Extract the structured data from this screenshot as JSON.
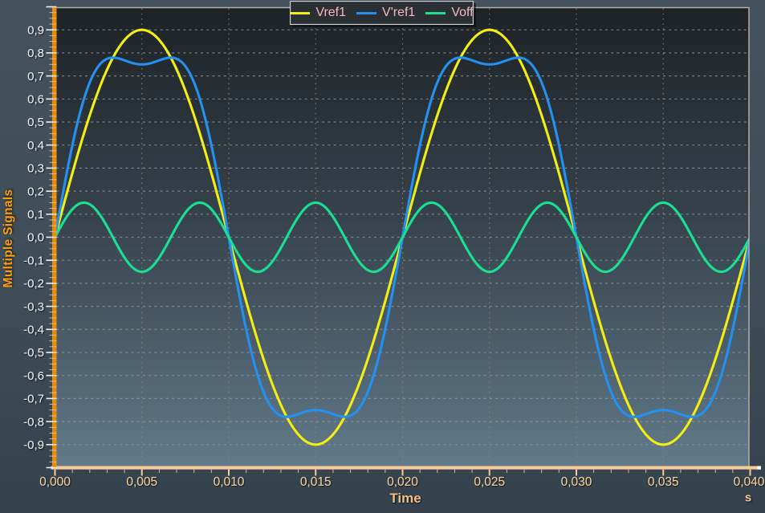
{
  "chart_data": {
    "type": "line",
    "ylabel": "Multiple Signals",
    "xlabel": "Time",
    "x_unit": "s",
    "xlim": [
      0,
      0.04
    ],
    "ylim": [
      -1.0,
      1.0
    ],
    "grid": {
      "horizontal": true,
      "vertical": true
    },
    "legend": {
      "position": "top-center",
      "entries": [
        "Vref1",
        "V'ref1",
        "Voff"
      ]
    },
    "x_ticks": [
      {
        "value": 0.0,
        "label": "0,000"
      },
      {
        "value": 0.005,
        "label": "0,005"
      },
      {
        "value": 0.01,
        "label": "0,010"
      },
      {
        "value": 0.015,
        "label": "0,015"
      },
      {
        "value": 0.02,
        "label": "0,020"
      },
      {
        "value": 0.025,
        "label": "0,025"
      },
      {
        "value": 0.03,
        "label": "0,030"
      },
      {
        "value": 0.035,
        "label": "0,035"
      },
      {
        "value": 0.04,
        "label": "0,040"
      }
    ],
    "y_ticks": [
      {
        "value": 0.9,
        "label": "0,9"
      },
      {
        "value": 0.8,
        "label": "0,8"
      },
      {
        "value": 0.7,
        "label": "0,7"
      },
      {
        "value": 0.6,
        "label": "0,6"
      },
      {
        "value": 0.5,
        "label": "0,5"
      },
      {
        "value": 0.4,
        "label": "0,4"
      },
      {
        "value": 0.3,
        "label": "0,3"
      },
      {
        "value": 0.2,
        "label": "0,2"
      },
      {
        "value": 0.1,
        "label": "0,1"
      },
      {
        "value": 0.0,
        "label": "0,0"
      },
      {
        "value": -0.1,
        "label": "-0,1"
      },
      {
        "value": -0.2,
        "label": "-0,2"
      },
      {
        "value": -0.3,
        "label": "-0,3"
      },
      {
        "value": -0.4,
        "label": "-0,4"
      },
      {
        "value": -0.5,
        "label": "-0,5"
      },
      {
        "value": -0.6,
        "label": "-0,6"
      },
      {
        "value": -0.7,
        "label": "-0,7"
      },
      {
        "value": -0.8,
        "label": "-0,8"
      },
      {
        "value": -0.9,
        "label": "-0,9"
      }
    ],
    "x_major_step": 0.005,
    "x_minor_step": 0.001,
    "y_major_step": 0.1,
    "y_minor_step": 0.025,
    "series": [
      {
        "name": "Vref1",
        "color": "#f3ef11",
        "description": "0.9 amplitude, 50 Hz sine",
        "components": [
          {
            "amplitude": 0.9,
            "frequency": 50,
            "phase": 0
          }
        ]
      },
      {
        "name": "V'ref1",
        "color": "#2490f0",
        "description": "50 Hz sine plus third harmonic (peaks 0.78, center dip 0.75)",
        "components": [
          {
            "amplitude": 0.9,
            "frequency": 50,
            "phase": 0
          },
          {
            "amplitude": 0.15,
            "frequency": 150,
            "phase": 0
          }
        ]
      },
      {
        "name": "Voff",
        "color": "#19e093",
        "description": "0.15 amplitude, 150 Hz sine",
        "components": [
          {
            "amplitude": 0.15,
            "frequency": 150,
            "phase": 0
          }
        ]
      }
    ],
    "colors": {
      "plot_bg_stops": [
        {
          "offset": 0,
          "color": "#1d2226"
        },
        {
          "offset": 0.45,
          "color": "#36424b"
        },
        {
          "offset": 0.75,
          "color": "#4d5f6c"
        },
        {
          "offset": 1,
          "color": "#617a8a"
        }
      ],
      "border": "#b3b0a4",
      "grid_horizontal": "#8f969b",
      "grid_vertical": "#9a8168",
      "y_axis": "#ee8a00",
      "y_major_tick": "#eef1f2",
      "y_minor_tick": "#c3c9cd",
      "y_tick_label": "#edf1f3",
      "x_axis": "#f7cb9a",
      "x_minor_tick": "#e7b587",
      "x_tick_label": "#fbd0a0",
      "axis_end_cap": "#ffffff",
      "legend_text": "#f6b9c2"
    }
  }
}
